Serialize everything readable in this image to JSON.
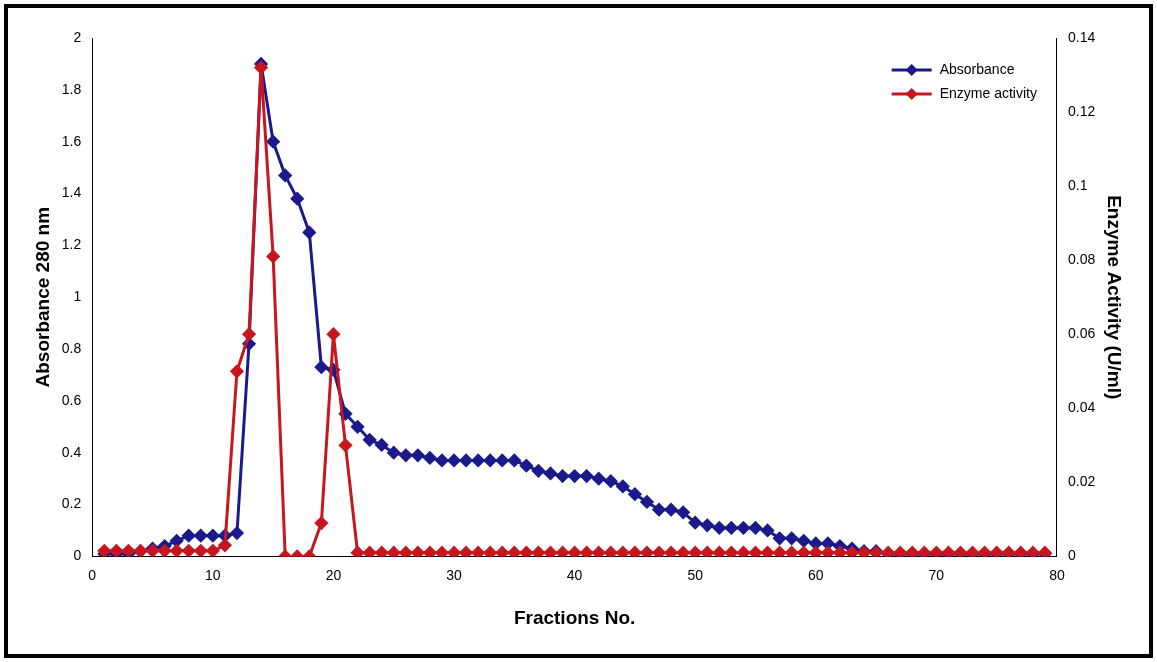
{
  "chart_data": {
    "type": "line",
    "xlabel": "Fractions No.",
    "ylabel": "Absorbance 280 nm",
    "y2label": "Enzyme Activity (U/ml)",
    "x": [
      1,
      2,
      3,
      4,
      5,
      6,
      7,
      8,
      9,
      10,
      11,
      12,
      13,
      14,
      15,
      16,
      17,
      18,
      19,
      20,
      21,
      22,
      23,
      24,
      25,
      26,
      27,
      28,
      29,
      30,
      31,
      32,
      33,
      34,
      35,
      36,
      37,
      38,
      39,
      40,
      41,
      42,
      43,
      44,
      45,
      46,
      47,
      48,
      49,
      50,
      51,
      52,
      53,
      54,
      55,
      56,
      57,
      58,
      59,
      60,
      61,
      62,
      63,
      64,
      65,
      66,
      67,
      68,
      69,
      70,
      71,
      72,
      73,
      74,
      75,
      76,
      77,
      78,
      79
    ],
    "series": [
      {
        "name": "Absorbance",
        "color": "#1a1a8c",
        "values": [
          0.01,
          0.01,
          0.01,
          0.02,
          0.03,
          0.04,
          0.06,
          0.08,
          0.08,
          0.08,
          0.08,
          0.09,
          0.82,
          1.9,
          1.6,
          1.47,
          1.38,
          1.25,
          0.73,
          0.72,
          0.55,
          0.5,
          0.45,
          0.43,
          0.4,
          0.39,
          0.39,
          0.38,
          0.37,
          0.37,
          0.37,
          0.37,
          0.37,
          0.37,
          0.37,
          0.35,
          0.33,
          0.32,
          0.31,
          0.31,
          0.31,
          0.3,
          0.29,
          0.27,
          0.24,
          0.21,
          0.18,
          0.18,
          0.17,
          0.13,
          0.12,
          0.11,
          0.11,
          0.11,
          0.11,
          0.1,
          0.07,
          0.07,
          0.06,
          0.05,
          0.05,
          0.04,
          0.03,
          0.02,
          0.02,
          0.01,
          0.01,
          0.01,
          0.01,
          0.01,
          0.01,
          0.01,
          0.01,
          0.01,
          0.01,
          0.01,
          0.01,
          0.01,
          0.01
        ]
      },
      {
        "name": "Enzyme activity",
        "color": "#c8161e",
        "axis": "y2",
        "values": [
          0.0015,
          0.0015,
          0.0015,
          0.0015,
          0.0015,
          0.0015,
          0.0015,
          0.0015,
          0.0015,
          0.0015,
          0.003,
          0.05,
          0.06,
          0.132,
          0.081,
          0,
          0,
          0,
          0.009,
          0.06,
          0.03,
          0.001,
          0.001,
          0.001,
          0.001,
          0.001,
          0.001,
          0.001,
          0.001,
          0.001,
          0.001,
          0.001,
          0.001,
          0.001,
          0.001,
          0.001,
          0.001,
          0.001,
          0.001,
          0.001,
          0.001,
          0.001,
          0.001,
          0.001,
          0.001,
          0.001,
          0.001,
          0.001,
          0.001,
          0.001,
          0.001,
          0.001,
          0.001,
          0.001,
          0.001,
          0.001,
          0.001,
          0.001,
          0.001,
          0.001,
          0.001,
          0.001,
          0.001,
          0.001,
          0.001,
          0.001,
          0.001,
          0.001,
          0.001,
          0.001,
          0.001,
          0.001,
          0.001,
          0.001,
          0.001,
          0.001,
          0.001,
          0.001,
          0.001
        ]
      }
    ],
    "xlim": [
      0,
      80
    ],
    "xticks": [
      0,
      10,
      20,
      30,
      40,
      50,
      60,
      70,
      80
    ],
    "ylim": [
      0,
      2
    ],
    "yticks": [
      0,
      0.2,
      0.4,
      0.6,
      0.8,
      1,
      1.2,
      1.4,
      1.6,
      1.8,
      2
    ],
    "y2lim": [
      0,
      0.14
    ],
    "y2ticks": [
      0,
      0.02,
      0.04,
      0.06,
      0.08,
      0.1,
      0.12,
      0.14
    ],
    "grid": false,
    "legend": "top right",
    "marker": "diamond",
    "line_style": "solid"
  }
}
